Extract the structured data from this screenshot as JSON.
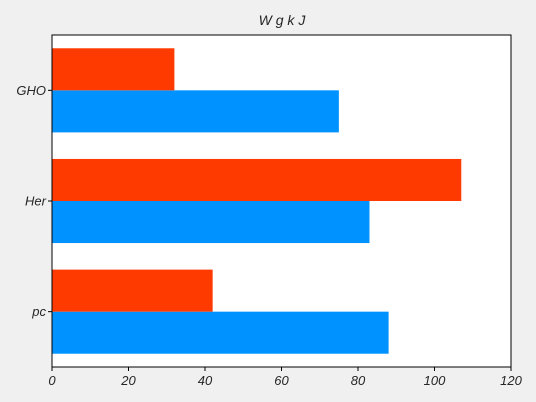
{
  "chart_data": {
    "type": "bar",
    "orientation": "horizontal",
    "title": "W g k J",
    "xlabel": "",
    "ylabel": "",
    "categories": [
      "pc",
      "Her",
      "GHO"
    ],
    "xlim": [
      0,
      120
    ],
    "xticks": [
      0,
      20,
      40,
      60,
      80,
      100,
      120
    ],
    "grid": false,
    "series": [
      {
        "color": "#0092ff",
        "values": [
          88,
          83,
          75
        ]
      },
      {
        "color": "#ff3a00",
        "values": [
          42,
          107,
          32
        ]
      }
    ]
  }
}
